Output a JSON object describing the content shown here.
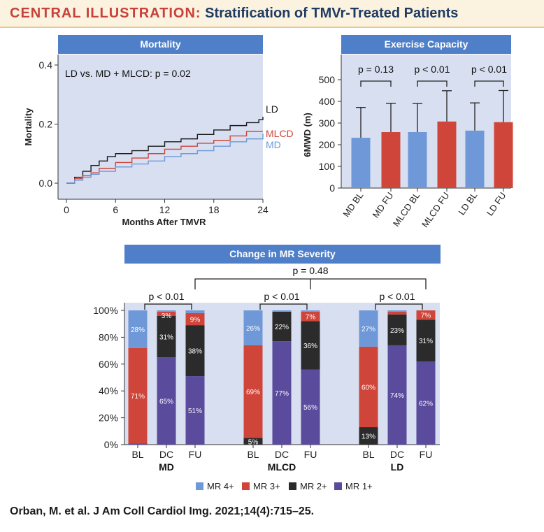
{
  "header": {
    "lead": "CENTRAL ILLUSTRATION:",
    "rest": "Stratification of TMVr-Treated Patients"
  },
  "citation": "Orban, M. et al. J Am Coll Cardiol Img. 2021;14(4):715–25.",
  "chart_data": [
    {
      "type": "line",
      "title": "Mortality",
      "xlabel": "Months After TMVR",
      "ylabel": "Mortality",
      "xlim": [
        0,
        24
      ],
      "ylim": [
        0,
        0.4
      ],
      "xticks": [
        "0",
        "6",
        "12",
        "18",
        "24"
      ],
      "yticks": [
        "0.0",
        "0.2",
        "0.4"
      ],
      "annotation": "LD vs. MD + MLCD: p = 0.02",
      "series": [
        {
          "name": "LD",
          "color": "#1a1a1a",
          "x": [
            0,
            1,
            2,
            3,
            4,
            5,
            6,
            8,
            10,
            12,
            14,
            16,
            18,
            20,
            22,
            23.5,
            24
          ],
          "y": [
            0,
            0.02,
            0.04,
            0.06,
            0.075,
            0.09,
            0.1,
            0.11,
            0.125,
            0.14,
            0.15,
            0.165,
            0.18,
            0.195,
            0.205,
            0.215,
            0.225
          ]
        },
        {
          "name": "MLCD",
          "color": "#d0453a",
          "x": [
            0,
            1,
            2,
            3,
            4,
            6,
            8,
            10,
            12,
            14,
            16,
            18,
            20,
            22,
            24
          ],
          "y": [
            0,
            0.015,
            0.025,
            0.035,
            0.05,
            0.07,
            0.085,
            0.1,
            0.115,
            0.125,
            0.135,
            0.145,
            0.16,
            0.175,
            0.175
          ]
        },
        {
          "name": "MD",
          "color": "#6f98d8",
          "x": [
            0,
            1,
            2,
            3,
            4,
            6,
            8,
            10,
            12,
            14,
            16,
            18,
            20,
            22,
            24
          ],
          "y": [
            0,
            0.01,
            0.02,
            0.03,
            0.04,
            0.055,
            0.065,
            0.075,
            0.09,
            0.1,
            0.11,
            0.125,
            0.14,
            0.15,
            0.168
          ]
        }
      ]
    },
    {
      "type": "bar",
      "title": "Exercise Capacity",
      "ylabel": "6MWD (m)",
      "ylim": [
        0,
        500
      ],
      "yticks": [
        "0",
        "100",
        "200",
        "300",
        "400",
        "500"
      ],
      "categories": [
        "MD BL",
        "MD FU",
        "MLCD BL",
        "MLCD FU",
        "LD BL",
        "LD FU"
      ],
      "values": [
        232,
        258,
        258,
        307,
        265,
        304
      ],
      "errors": [
        140,
        133,
        132,
        142,
        128,
        146
      ],
      "colors": [
        "#6f98d8",
        "#d0453a",
        "#6f98d8",
        "#d0453a",
        "#6f98d8",
        "#d0453a"
      ],
      "comparisons": [
        "p = 0.13",
        "p < 0.01",
        "p < 0.01"
      ]
    },
    {
      "type": "bar",
      "title": "Change in MR Severity",
      "ylim": [
        0,
        100
      ],
      "yticks": [
        "0%",
        "20%",
        "40%",
        "60%",
        "80%",
        "100%"
      ],
      "overall_p": "p = 0.48",
      "legend": [
        {
          "name": "MR 4+",
          "color": "#6f98d8"
        },
        {
          "name": "MR 3+",
          "color": "#d0453a"
        },
        {
          "name": "MR 2+",
          "color": "#2b2b2b"
        },
        {
          "name": "MR 1+",
          "color": "#5a4b9c"
        }
      ],
      "groups": [
        {
          "name": "MD",
          "p": "p < 0.01",
          "bars": [
            {
              "label": "BL",
              "values": [
                1,
                0,
                71,
                28
              ],
              "labels": [
                "",
                "",
                "71%",
                "28%"
              ]
            },
            {
              "label": "DC",
              "values": [
                65,
                31,
                3,
                1
              ],
              "labels": [
                "65%",
                "31%",
                "3%",
                ""
              ]
            },
            {
              "label": "FU",
              "values": [
                51,
                38,
                9,
                2
              ],
              "labels": [
                "51%",
                "38%",
                "9%",
                ""
              ]
            }
          ]
        },
        {
          "name": "MLCD",
          "p": "p < 0.01",
          "bars": [
            {
              "label": "BL",
              "values": [
                0,
                5,
                69,
                26
              ],
              "labels": [
                "",
                "5%",
                "69%",
                "26%"
              ]
            },
            {
              "label": "DC",
              "values": [
                77,
                22,
                0,
                1
              ],
              "labels": [
                "77%",
                "22%",
                "",
                ""
              ]
            },
            {
              "label": "FU",
              "values": [
                56,
                36,
                7,
                1
              ],
              "labels": [
                "56%",
                "36%",
                "7%",
                ""
              ]
            }
          ]
        },
        {
          "name": "LD",
          "p": "p < 0.01",
          "bars": [
            {
              "label": "BL",
              "values": [
                0,
                13,
                60,
                27
              ],
              "labels": [
                "",
                "13%",
                "60%",
                "27%"
              ]
            },
            {
              "label": "DC",
              "values": [
                74,
                23,
                2,
                1
              ],
              "labels": [
                "74%",
                "23%",
                "",
                ""
              ]
            },
            {
              "label": "FU",
              "values": [
                62,
                31,
                7,
                0
              ],
              "labels": [
                "62%",
                "31%",
                "7%",
                ""
              ]
            }
          ]
        }
      ]
    }
  ]
}
